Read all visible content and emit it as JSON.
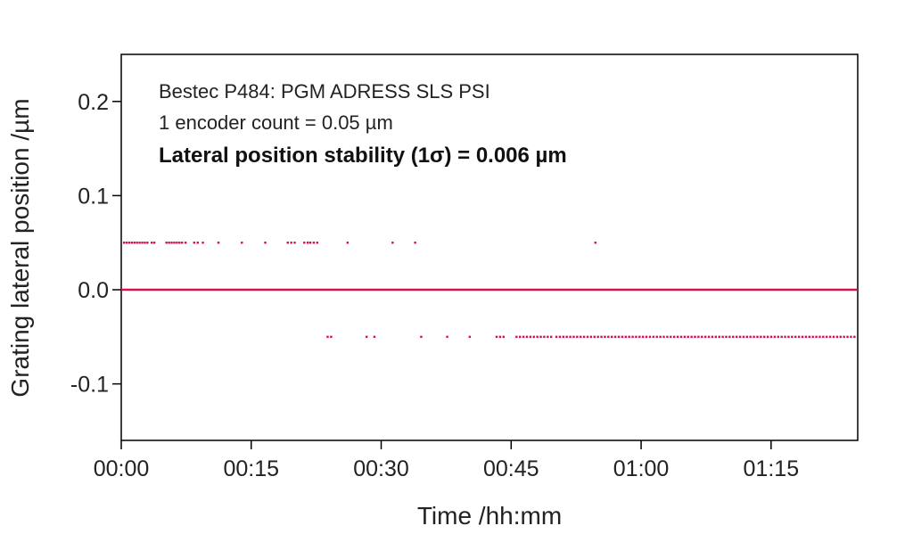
{
  "chart_data": {
    "type": "scatter",
    "title": "",
    "xlabel": "Time /hh:mm",
    "ylabel": "Grating lateral position /µm",
    "xlim": [
      0,
      85
    ],
    "ylim": [
      -0.16,
      0.25
    ],
    "x_ticks": [
      {
        "value": 0,
        "label": "00:00"
      },
      {
        "value": 15,
        "label": "00:15"
      },
      {
        "value": 30,
        "label": "00:30"
      },
      {
        "value": 45,
        "label": "00:45"
      },
      {
        "value": 60,
        "label": "01:00"
      },
      {
        "value": 75,
        "label": "01:15"
      }
    ],
    "y_ticks": [
      {
        "value": 0.2,
        "label": "0.2"
      },
      {
        "value": 0.1,
        "label": "0.1"
      },
      {
        "value": 0.0,
        "label": "0.0"
      },
      {
        "value": -0.1,
        "label": "-0.1"
      }
    ],
    "grid": false,
    "annotations": [
      {
        "text": "Bestec P484: PGM ADRESS SLS PSI",
        "style": "normal"
      },
      {
        "text": "1 encoder count = 0.05 µm",
        "style": "normal"
      },
      {
        "text": "Lateral position stability (1σ) = 0.006 µm",
        "style": "bold"
      }
    ],
    "color": "#d4124c",
    "series": [
      {
        "y": 0.05,
        "x": [
          0.3,
          0.6,
          0.9,
          1.2,
          1.5,
          1.8,
          2.1,
          2.4,
          2.7,
          3.0,
          3.5,
          3.8,
          5.2,
          5.5,
          5.8,
          6.1,
          6.4,
          6.7,
          7.0,
          7.4,
          8.4,
          8.8,
          9.4,
          11.2,
          13.9,
          16.6,
          19.2,
          19.6,
          20.0,
          21.1,
          21.5,
          21.8,
          22.2,
          22.6,
          26.1,
          31.3,
          33.9,
          54.7
        ]
      },
      {
        "y": 0.0,
        "x": [
          0,
          85
        ]
      },
      {
        "y": -0.05,
        "x": [
          23.8,
          24.2,
          28.3,
          29.2,
          34.6,
          37.6,
          40.2,
          43.3,
          43.7,
          44.1,
          45.6,
          46.0,
          46.4,
          46.8,
          47.2,
          47.6,
          48.0,
          48.4,
          48.8,
          49.2,
          49.6,
          50.2,
          50.6,
          51.0,
          51.4,
          51.8,
          52.2,
          52.6,
          53.0,
          53.4,
          53.8,
          54.2,
          54.6,
          55.0,
          55.4,
          55.8,
          56.2,
          56.6,
          57.0,
          57.4,
          57.8,
          58.2,
          58.6,
          59.0,
          59.4,
          59.8,
          60.2,
          60.6,
          61.0,
          61.4,
          61.8,
          62.2,
          62.6,
          63.0,
          63.4,
          63.8,
          64.2,
          64.6,
          65.0,
          65.4,
          65.8,
          66.2,
          66.6,
          67.0,
          67.4,
          67.8,
          68.2,
          68.6,
          69.0,
          69.4,
          69.8,
          70.2,
          70.6,
          71.0,
          71.4,
          71.8,
          72.2,
          72.6,
          73.0,
          73.4,
          73.8,
          74.2,
          74.6,
          75.0,
          75.4,
          75.8,
          76.2,
          76.6,
          77.0,
          77.4,
          77.8,
          78.2,
          78.6,
          79.0,
          79.4,
          79.8,
          80.2,
          80.6,
          81.0,
          81.4,
          81.8,
          82.2,
          82.6,
          83.0,
          83.4,
          83.8,
          84.2,
          84.6
        ]
      }
    ]
  }
}
